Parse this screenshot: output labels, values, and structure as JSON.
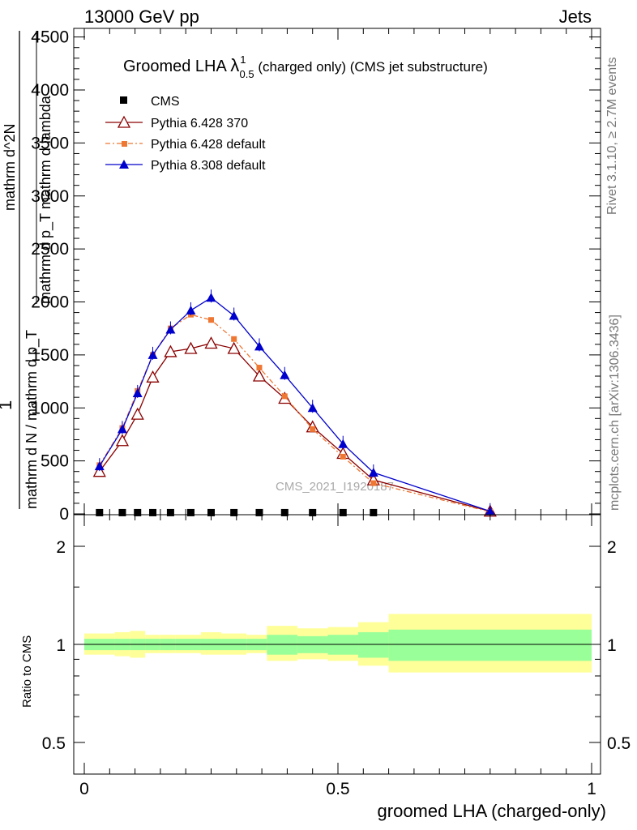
{
  "header": {
    "left": "13000 GeV pp",
    "right": "Jets"
  },
  "side_labels": {
    "top": "Rivet 3.1.10, ≥ 2.7M events",
    "bottom": "mcplots.cern.ch [arXiv:1306.3436]"
  },
  "watermark": "CMS_2021_I1920187",
  "title": {
    "prefix": "Groomed LHA ",
    "symbol": "λ",
    "sup": "1",
    "sub": "0.5",
    "suffix": " (charged only) (CMS jet substructure)"
  },
  "ylabel": {
    "numerator_one": "1",
    "lines": [
      "mathrm d N / mathrm d p_T",
      "mathrm d^2N",
      "mathrm d p_T mathrm d lambda"
    ]
  },
  "ratio_ylabel": "Ratio to CMS",
  "xlabel": "groomed LHA (charged-only)",
  "colors": {
    "cms": "#000000",
    "p6_370": "#8b0000",
    "p6_default": "#ee7733",
    "p8": "#0000cc",
    "band_inner": "#99ff99",
    "band_outer": "#ffff99"
  },
  "chart_data": {
    "type": "line",
    "xlim": [
      -0.02,
      1.0
    ],
    "ylim_main": [
      0,
      4600
    ],
    "ylim_ratio": [
      0.4,
      2.4
    ],
    "y_ticks_main": [
      "0",
      "500",
      "1000",
      "1500",
      "2000",
      "2500",
      "3000",
      "3500",
      "4000",
      "4500"
    ],
    "y_ticks_main_values": [
      0,
      500,
      1000,
      1500,
      2000,
      2500,
      3000,
      3500,
      4000,
      4500
    ],
    "y_ticks_ratio": [
      "0.5",
      "1",
      "2"
    ],
    "y_ticks_ratio_values": [
      0.5,
      1,
      2
    ],
    "x_ticks": [
      "0",
      "0.5",
      "1"
    ],
    "x_ticks_values": [
      0,
      0.5,
      1
    ],
    "x_bins": [
      0.0,
      0.06,
      0.09,
      0.12,
      0.15,
      0.18,
      0.23,
      0.27,
      0.32,
      0.36,
      0.42,
      0.48,
      0.54,
      0.6,
      1.0
    ],
    "series": [
      {
        "name": "CMS",
        "key": "cms",
        "marker": "square",
        "x": [
          0.03,
          0.075,
          0.105,
          0.135,
          0.17,
          0.21,
          0.25,
          0.295,
          0.345,
          0.395,
          0.45,
          0.51,
          0.57
        ],
        "values": [
          12,
          12,
          12,
          12,
          12,
          12,
          12,
          12,
          12,
          12,
          12,
          12,
          12
        ]
      },
      {
        "name": "Pythia 6.428 370",
        "key": "p6_370",
        "marker": "triangle-open",
        "x": [
          0.03,
          0.075,
          0.105,
          0.135,
          0.17,
          0.21,
          0.25,
          0.295,
          0.345,
          0.395,
          0.45,
          0.51,
          0.57,
          0.8
        ],
        "values": [
          400,
          690,
          940,
          1290,
          1530,
          1560,
          1610,
          1560,
          1300,
          1090,
          820,
          570,
          320,
          25
        ]
      },
      {
        "name": "Pythia 6.428 default",
        "key": "p6_default",
        "marker": "square-small",
        "x": [
          0.03,
          0.075,
          0.105,
          0.135,
          0.17,
          0.21,
          0.25,
          0.295,
          0.345,
          0.395,
          0.45,
          0.51,
          0.57,
          0.8
        ],
        "values": [
          460,
          810,
          1160,
          1500,
          1750,
          1880,
          1830,
          1650,
          1380,
          1110,
          800,
          540,
          290,
          20
        ]
      },
      {
        "name": "Pythia 8.308 default",
        "key": "p8",
        "marker": "triangle-filled",
        "x": [
          0.03,
          0.075,
          0.105,
          0.135,
          0.17,
          0.21,
          0.25,
          0.295,
          0.345,
          0.395,
          0.45,
          0.51,
          0.57,
          0.8
        ],
        "values": [
          450,
          800,
          1140,
          1500,
          1740,
          1920,
          2040,
          1870,
          1580,
          1310,
          1000,
          660,
          390,
          25
        ]
      }
    ],
    "ratio_band": {
      "inner_up": [
        1.04,
        1.04,
        1.04,
        1.04,
        1.04,
        1.04,
        1.04,
        1.04,
        1.04,
        1.07,
        1.06,
        1.07,
        1.09,
        1.11
      ],
      "inner_dn": [
        0.96,
        0.96,
        0.96,
        0.96,
        0.96,
        0.96,
        0.96,
        0.96,
        0.96,
        0.93,
        0.94,
        0.93,
        0.91,
        0.89
      ],
      "outer_up": [
        1.08,
        1.09,
        1.1,
        1.07,
        1.07,
        1.07,
        1.09,
        1.08,
        1.07,
        1.14,
        1.12,
        1.13,
        1.17,
        1.24
      ],
      "outer_dn": [
        0.93,
        0.92,
        0.91,
        0.94,
        0.94,
        0.94,
        0.93,
        0.93,
        0.94,
        0.89,
        0.9,
        0.89,
        0.86,
        0.82
      ]
    },
    "legend_position": "top-left"
  }
}
